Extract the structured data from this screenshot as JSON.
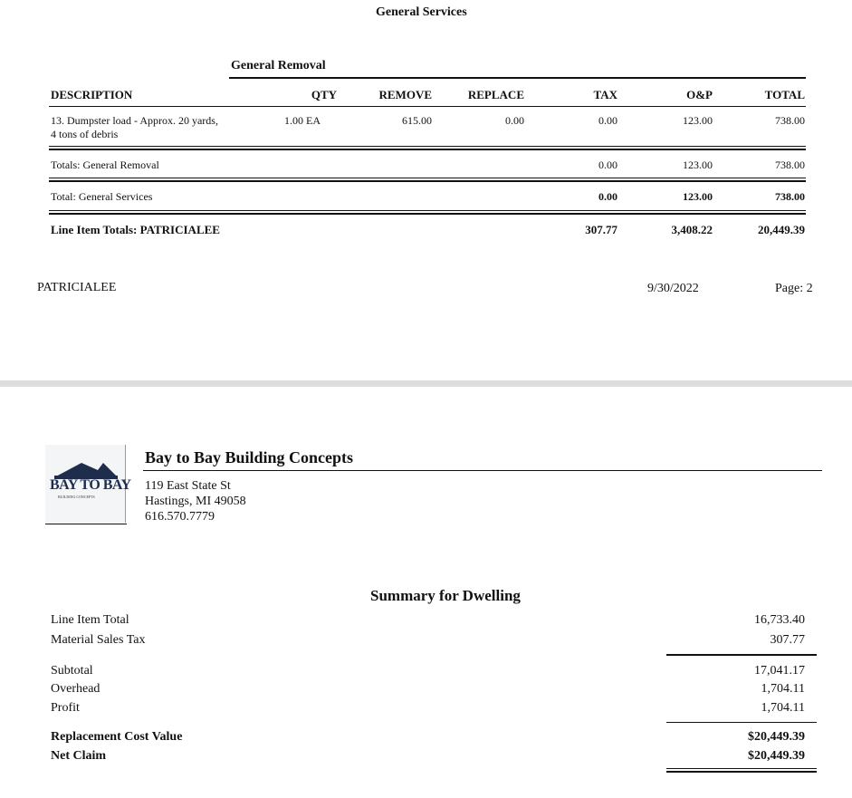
{
  "page1": {
    "section_title": "General Services",
    "group_title": "General Removal",
    "columns": [
      "DESCRIPTION",
      "QTY",
      "REMOVE",
      "REPLACE",
      "TAX",
      "O&P",
      "TOTAL"
    ],
    "item": {
      "description_line1": "13.  Dumpster load - Approx. 20 yards,",
      "description_line2": "4 tons of debris",
      "qty": "1.00 EA",
      "remove": "615.00",
      "replace": "0.00",
      "tax": "0.00",
      "op": "123.00",
      "total": "738.00"
    },
    "group_totals": {
      "label": "Totals:  General Removal",
      "tax": "0.00",
      "op": "123.00",
      "total": "738.00"
    },
    "section_totals": {
      "label": "Total: General Services",
      "tax": "0.00",
      "op": "123.00",
      "total": "738.00"
    },
    "line_item_totals": {
      "label": "Line Item Totals: PATRICIALEE",
      "tax": "307.77",
      "op": "3,408.22",
      "total": "20,449.39"
    },
    "footer": {
      "name": "PATRICIALEE",
      "date": "9/30/2022",
      "page": "Page: 2"
    }
  },
  "page2": {
    "logo_text": "BAY TO BAY",
    "logo_subtext": "BUILDING CONCEPTS",
    "company": "Bay to Bay Building Concepts",
    "address1": "119 East State St",
    "address2": "Hastings, MI 49058",
    "phone": "616.570.7779",
    "summary_title": "Summary for Dwelling",
    "rows": [
      {
        "label": "Line Item Total",
        "value": "16,733.40"
      },
      {
        "label": "Material Sales Tax",
        "value": "307.77"
      },
      {
        "label": "Subtotal",
        "value": "17,041.17"
      },
      {
        "label": "Overhead",
        "value": "1,704.11"
      },
      {
        "label": "Profit",
        "value": "1,704.11"
      },
      {
        "label": "Replacement Cost Value",
        "value": "$20,449.39"
      },
      {
        "label": "Net Claim",
        "value": "$20,449.39"
      }
    ]
  }
}
